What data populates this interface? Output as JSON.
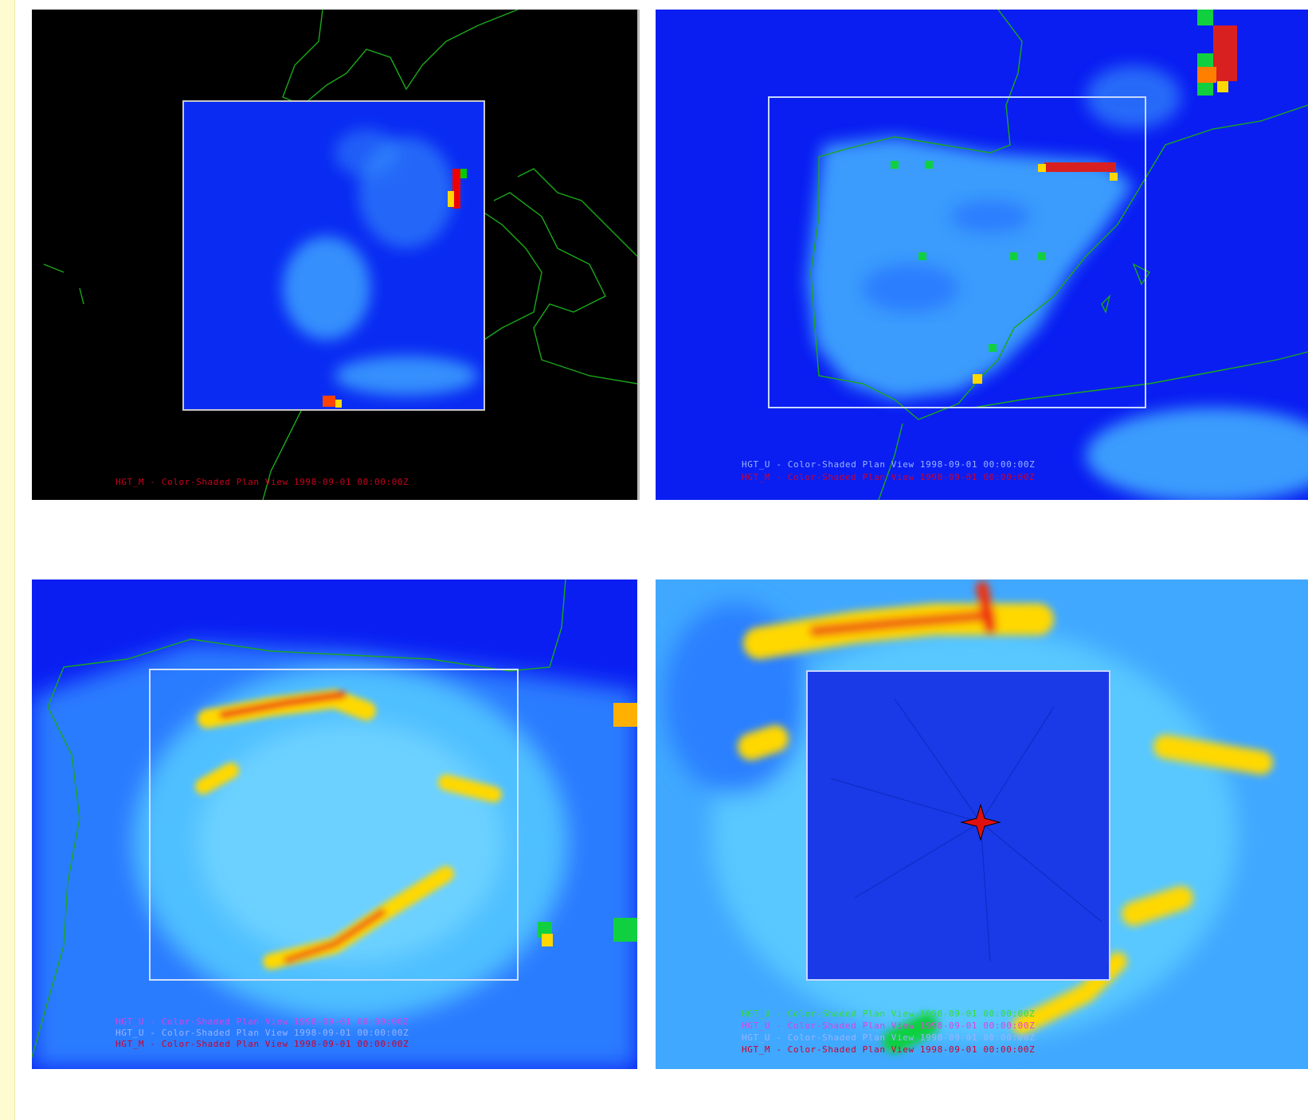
{
  "panels": [
    {
      "captions": [
        {
          "text": "HGT_M - Color-Shaded Plan View 1998-09-01 00:00:00Z",
          "color": "#c8001e"
        }
      ]
    },
    {
      "captions": [
        {
          "text": "HGT_U - Color-Shaded Plan View 1998-09-01 00:00:00Z",
          "color": "#9ab4ff"
        },
        {
          "text": "HGT_M - Color-Shaded Plan View 1998-09-01 00:00:00Z",
          "color": "#d0002a"
        }
      ]
    },
    {
      "captions": [
        {
          "text": "HGT_U - Color-Shaded Plan View 1998-09-01 00:00:00Z",
          "color": "#e040e0"
        },
        {
          "text": "HGT_U - Color-Shaded Plan View 1998-09-01 00:00:00Z",
          "color": "#9ab4ff"
        },
        {
          "text": "HGT_M - Color-Shaded Plan View 1998-09-01 00:00:00Z",
          "color": "#d0002a"
        }
      ]
    },
    {
      "captions": [
        {
          "text": "HGT_U - Color-Shaded Plan View 1998-09-01 00:00:00Z",
          "color": "#30e030"
        },
        {
          "text": "HGT_U - Color-Shaded Plan View 1998-09-01 00:00:00Z",
          "color": "#e040e0"
        },
        {
          "text": "HGT_U - Color-Shaded Plan View 1998-09-01 00:00:00Z",
          "color": "#9ab4ff"
        },
        {
          "text": "HGT_M - Color-Shaded Plan View 1998-09-01 00:00:00Z",
          "color": "#d0002a"
        }
      ]
    }
  ]
}
